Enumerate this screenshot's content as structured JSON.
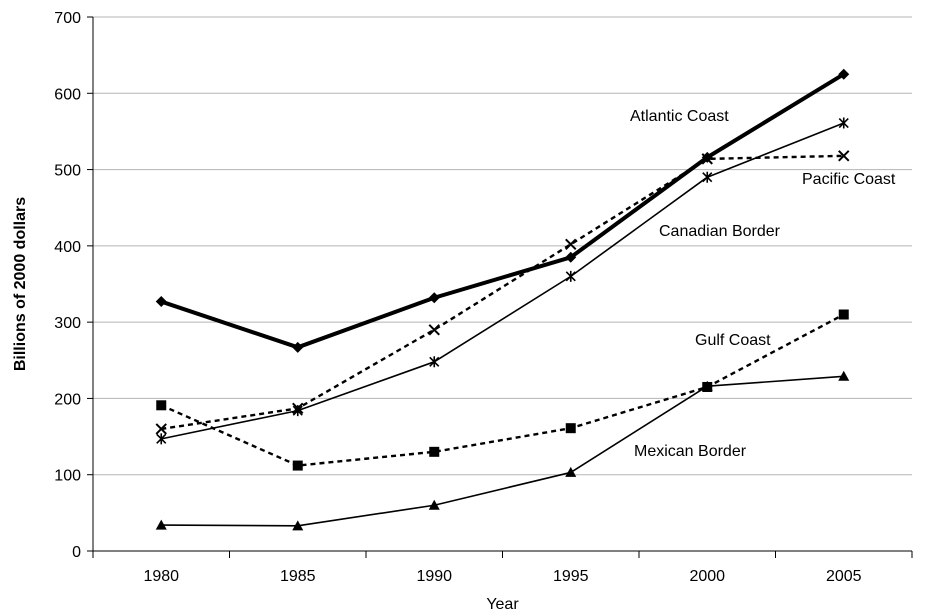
{
  "chart_data": {
    "type": "line",
    "title": "",
    "xlabel": "Year",
    "ylabel": "Billions of 2000 dollars",
    "categories": [
      "1980",
      "1985",
      "1990",
      "1995",
      "2000",
      "2005"
    ],
    "ylim": [
      0,
      700
    ],
    "yticks": [
      "0",
      "100",
      "200",
      "300",
      "400",
      "500",
      "600",
      "700"
    ],
    "grid": "horizontal",
    "legend": "none",
    "series": [
      {
        "name": "Atlantic Coast",
        "values": [
          327,
          267,
          332,
          385,
          516,
          625
        ],
        "marker": "diamond",
        "line": "solid-thick",
        "color": "#000000"
      },
      {
        "name": "Pacific Coast",
        "values": [
          160,
          187,
          290,
          402,
          514,
          518
        ],
        "marker": "x",
        "line": "dotted",
        "color": "#000000"
      },
      {
        "name": "Canadian Border",
        "values": [
          147,
          184,
          248,
          360,
          490,
          561
        ],
        "marker": "asterisk",
        "line": "solid-thin",
        "color": "#000000"
      },
      {
        "name": "Gulf Coast",
        "values": [
          191,
          112,
          130,
          161,
          215,
          310
        ],
        "marker": "square",
        "line": "dotted",
        "color": "#000000"
      },
      {
        "name": "Mexican Border",
        "values": [
          34,
          33,
          60,
          103,
          216,
          229
        ],
        "marker": "triangle",
        "line": "solid-thin",
        "color": "#000000"
      }
    ]
  }
}
